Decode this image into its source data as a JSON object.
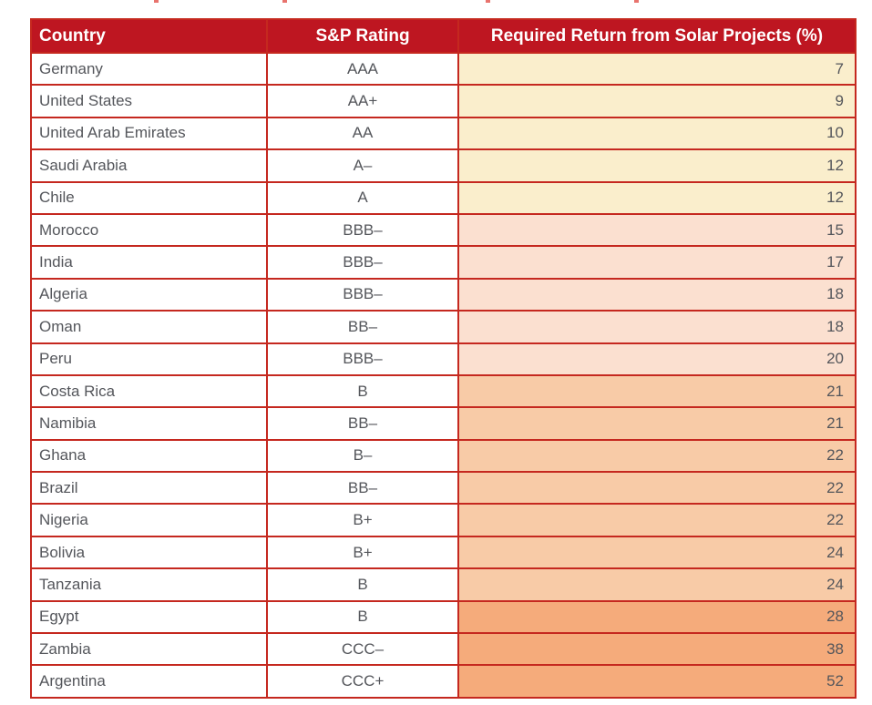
{
  "colors": {
    "page_bg": "#ffffff",
    "header_bg": "#be1621",
    "header_text": "#ffffff",
    "border": "#c5281f",
    "body_text": "#54565b"
  },
  "chart_data": {
    "type": "table",
    "columns": [
      "Country",
      "S&P Rating",
      "Required Return from Solar Projects (%)"
    ],
    "tier_colors": {
      "tier1": "#faeecc",
      "tier2": "#fbe0d0",
      "tier3": "#f8cba7",
      "tier4": "#f5ab7b"
    },
    "rows": [
      {
        "country": "Germany",
        "rating": "AAA",
        "return_pct": "7",
        "tier": "tier1"
      },
      {
        "country": "United States",
        "rating": "AA+",
        "return_pct": "9",
        "tier": "tier1"
      },
      {
        "country": "United Arab Emirates",
        "rating": "AA",
        "return_pct": "10",
        "tier": "tier1"
      },
      {
        "country": "Saudi Arabia",
        "rating": "A–",
        "return_pct": "12",
        "tier": "tier1"
      },
      {
        "country": "Chile",
        "rating": "A",
        "return_pct": "12",
        "tier": "tier1"
      },
      {
        "country": "Morocco",
        "rating": "BBB–",
        "return_pct": "15",
        "tier": "tier2"
      },
      {
        "country": "India",
        "rating": "BBB–",
        "return_pct": "17",
        "tier": "tier2"
      },
      {
        "country": "Algeria",
        "rating": "BBB–",
        "return_pct": "18",
        "tier": "tier2"
      },
      {
        "country": "Oman",
        "rating": "BB–",
        "return_pct": "18",
        "tier": "tier2"
      },
      {
        "country": "Peru",
        "rating": "BBB–",
        "return_pct": "20",
        "tier": "tier2"
      },
      {
        "country": "Costa Rica",
        "rating": "B",
        "return_pct": "21",
        "tier": "tier3"
      },
      {
        "country": "Namibia",
        "rating": "BB–",
        "return_pct": "21",
        "tier": "tier3"
      },
      {
        "country": "Ghana",
        "rating": "B–",
        "return_pct": "22",
        "tier": "tier3"
      },
      {
        "country": "Brazil",
        "rating": "BB–",
        "return_pct": "22",
        "tier": "tier3"
      },
      {
        "country": "Nigeria",
        "rating": "B+",
        "return_pct": "22",
        "tier": "tier3"
      },
      {
        "country": "Bolivia",
        "rating": "B+",
        "return_pct": "24",
        "tier": "tier3"
      },
      {
        "country": "Tanzania",
        "rating": "B",
        "return_pct": "24",
        "tier": "tier3"
      },
      {
        "country": "Egypt",
        "rating": "B",
        "return_pct": "28",
        "tier": "tier4"
      },
      {
        "country": "Zambia",
        "rating": "CCC–",
        "return_pct": "38",
        "tier": "tier4"
      },
      {
        "country": "Argentina",
        "rating": "CCC+",
        "return_pct": "52",
        "tier": "tier4"
      }
    ]
  }
}
